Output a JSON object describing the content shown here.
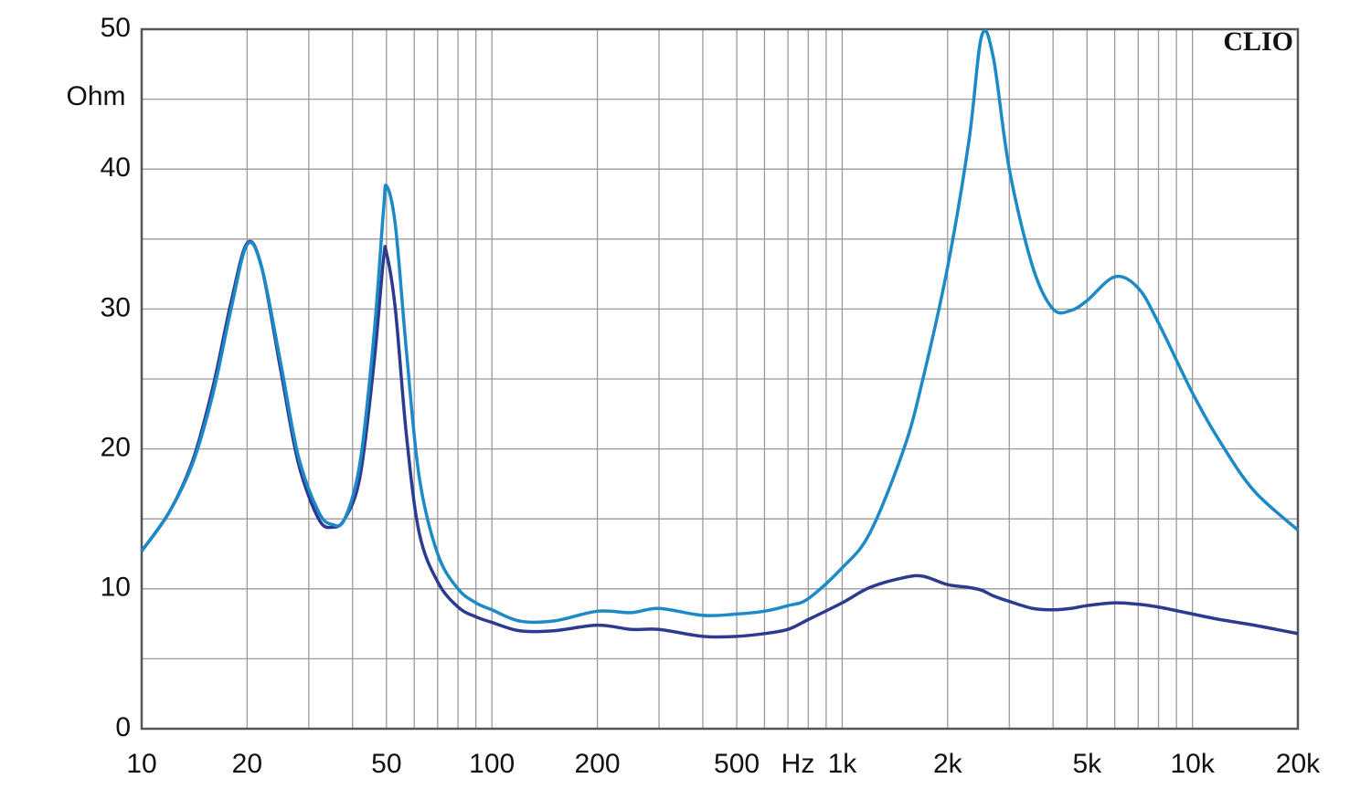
{
  "chart_data": {
    "type": "line",
    "annotation": "CLIO",
    "x_label": "Hz",
    "y_label": "Ohm",
    "x": [
      10,
      12,
      14,
      16,
      18,
      20,
      22,
      25,
      28,
      32,
      35,
      38,
      42,
      46,
      49,
      50,
      53,
      57,
      62,
      70,
      80,
      90,
      100,
      120,
      150,
      200,
      250,
      300,
      400,
      500,
      600,
      700,
      800,
      1000,
      1200,
      1500,
      1700,
      2000,
      2300,
      2500,
      2700,
      3000,
      3500,
      4000,
      4500,
      5000,
      6000,
      7000,
      8000,
      10000,
      12000,
      15000,
      20000
    ],
    "series": [
      {
        "color": "#1b8ac6",
        "values": [
          12.7,
          15.5,
          19,
          24,
          30,
          34.6,
          33,
          26,
          19.5,
          15.5,
          14.6,
          15,
          19,
          28,
          37,
          38.8,
          36,
          27,
          18,
          12.5,
          10,
          9,
          8.5,
          7.7,
          7.7,
          8.4,
          8.3,
          8.6,
          8.1,
          8.2,
          8.4,
          8.8,
          9.3,
          11.5,
          14,
          20,
          25,
          33,
          42,
          49.5,
          48,
          40,
          33,
          30,
          29.9,
          30.6,
          32.3,
          31.5,
          29,
          24,
          20.5,
          17,
          14.2
        ]
      },
      {
        "color": "#2c3a8f",
        "values": [
          12.7,
          15.5,
          19.2,
          24.5,
          30.5,
          34.7,
          33,
          25.5,
          19,
          15,
          14.4,
          15,
          18,
          26,
          33.5,
          34,
          30,
          21,
          14,
          10.5,
          8.7,
          8,
          7.6,
          7,
          7,
          7.4,
          7.1,
          7.1,
          6.6,
          6.6,
          6.8,
          7.1,
          7.8,
          9,
          10.1,
          10.8,
          10.9,
          10.3,
          10.1,
          9.9,
          9.5,
          9.1,
          8.6,
          8.5,
          8.6,
          8.8,
          9,
          8.9,
          8.7,
          8.2,
          7.8,
          7.4,
          6.8
        ]
      }
    ],
    "xlog": true,
    "xlim": [
      10,
      20000
    ],
    "xticks": [
      10,
      20,
      50,
      100,
      200,
      500,
      {
        "value": 1000,
        "label": "1k"
      },
      {
        "value": 2000,
        "label": "2k"
      },
      {
        "value": 5000,
        "label": "5k"
      },
      {
        "value": 10000,
        "label": "10k"
      },
      {
        "value": 20000,
        "label": "20k"
      }
    ],
    "xminor": [
      30,
      40,
      60,
      70,
      80,
      90,
      300,
      400,
      600,
      700,
      800,
      900,
      3000,
      4000,
      6000,
      7000,
      8000,
      9000
    ],
    "ylim": [
      0,
      50
    ],
    "yticks": [
      0,
      10,
      20,
      30,
      40,
      50
    ],
    "yminor": [
      5,
      15,
      25,
      35,
      45
    ],
    "grid": true
  }
}
